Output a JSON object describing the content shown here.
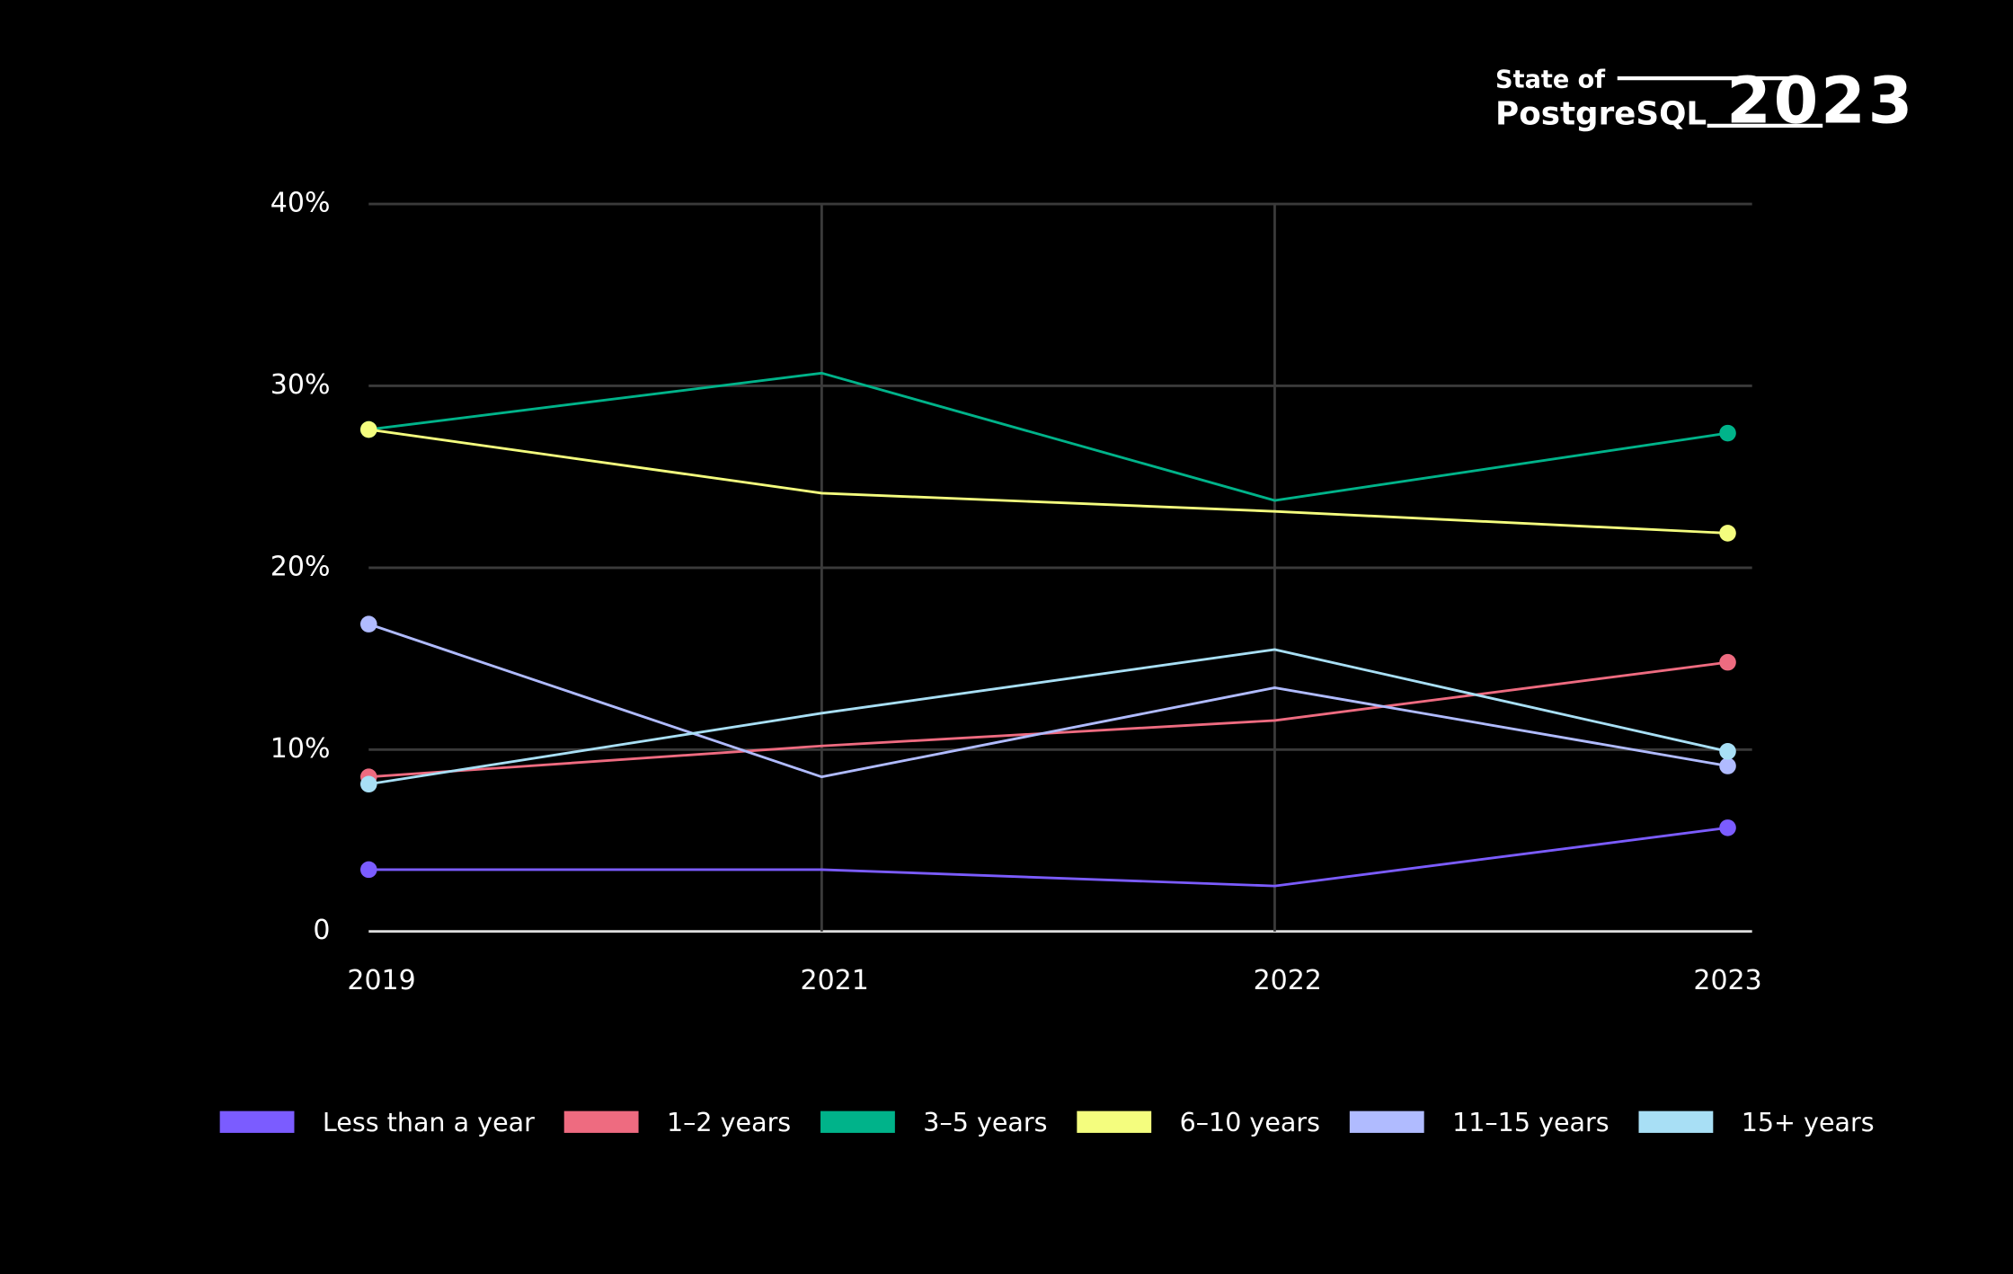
{
  "logo": {
    "line1": "State of",
    "line2": "PostgreSQL",
    "year": "2023"
  },
  "chart_data": {
    "type": "line",
    "categories": [
      "2019",
      "2021",
      "2022",
      "2023"
    ],
    "ylim": [
      0,
      40
    ],
    "yticks": [
      0,
      {
        "value": 10,
        "label": "10%"
      },
      {
        "value": 20,
        "label": "20%"
      },
      {
        "value": 30,
        "label": "30%"
      },
      {
        "value": 40,
        "label": "40%"
      }
    ],
    "grid": true,
    "series": [
      {
        "name": "Less than a year",
        "color": "#7b5cff",
        "values": [
          3.4,
          3.4,
          2.5,
          5.7
        ]
      },
      {
        "name": "1–2 years",
        "color": "#ee6b80",
        "values": [
          8.5,
          10.2,
          11.6,
          14.8
        ]
      },
      {
        "name": "3–5 years",
        "color": "#00b38a",
        "values": [
          27.6,
          30.7,
          23.7,
          27.4
        ]
      },
      {
        "name": "6–10 years",
        "color": "#f4fd7e",
        "values": [
          27.6,
          24.1,
          23.1,
          21.9
        ]
      },
      {
        "name": "11–15 years",
        "color": "#b0bbff",
        "values": [
          16.9,
          8.5,
          13.4,
          9.1
        ]
      },
      {
        "name": "15+ years",
        "color": "#a8dff5",
        "values": [
          8.1,
          12.0,
          15.5,
          9.9
        ]
      }
    ]
  }
}
